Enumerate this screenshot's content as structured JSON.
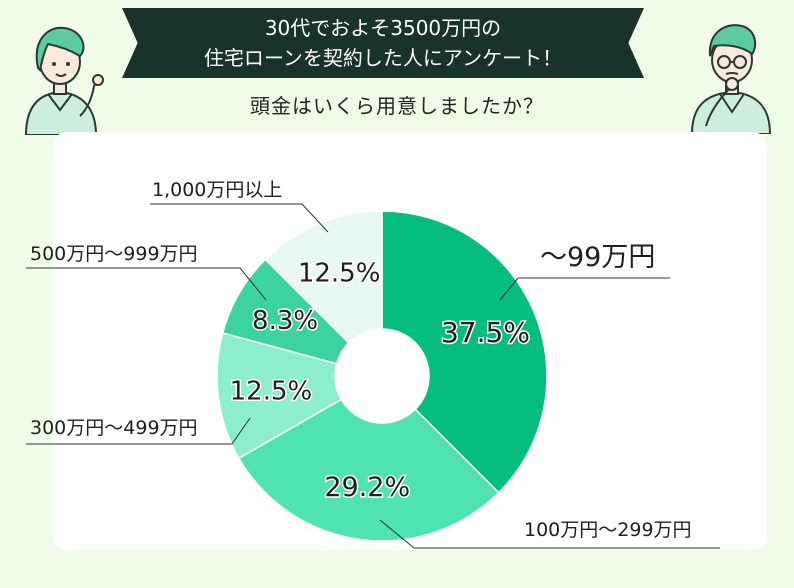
{
  "banner": {
    "line1": "30代でおよそ3500万円の",
    "line2": "住宅ローンを契約した人にアンケート！"
  },
  "question": "頭金はいくら用意しましたか？",
  "chart_data": {
    "type": "pie",
    "donut": true,
    "slices": [
      {
        "label": "〜99万円",
        "value": 37.5,
        "value_label": "37.5%",
        "color": "#05bd7c"
      },
      {
        "label": "100万円〜299万円",
        "value": 29.2,
        "value_label": "29.2%",
        "color": "#4fe3b1"
      },
      {
        "label": "300万円〜499万円",
        "value": 12.5,
        "value_label": "12.5%",
        "color": "#8deecc"
      },
      {
        "label": "500万円〜999万円",
        "value": 8.3,
        "value_label": "8.3%",
        "color": "#3dd39f"
      },
      {
        "label": "1,000万円以上",
        "value": 12.5,
        "value_label": "12.5%",
        "color": "#e9f9f2"
      }
    ]
  }
}
